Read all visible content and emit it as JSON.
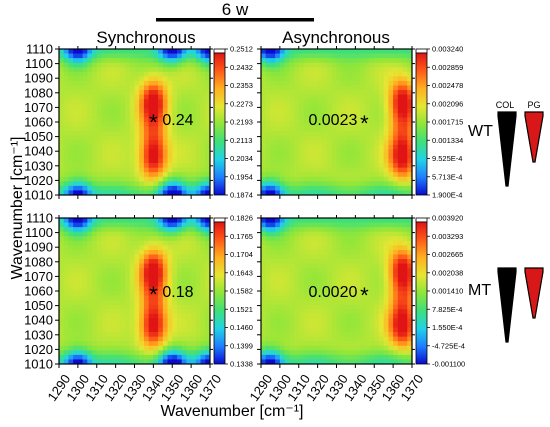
{
  "figure": {
    "top_label": "6 w",
    "col_titles": [
      "Synchronous",
      "Asynchronous"
    ],
    "ylabel": "Wavenumber [cm⁻¹]",
    "xlabel": "Wavenumber [cm⁻¹]"
  },
  "chart_data": [
    {
      "type": "heatmap",
      "panel": "WT synchronous",
      "row_label": "WT",
      "x_ticks": [
        "1290",
        "1300",
        "1310",
        "1320",
        "1330",
        "1340",
        "1350",
        "1360",
        "1370"
      ],
      "y_ticks": [
        "1110",
        "1100",
        "1090",
        "1080",
        "1070",
        "1060",
        "1050",
        "1040",
        "1030",
        "1020",
        "1010"
      ],
      "xlim": [
        1290,
        1370
      ],
      "ylim": [
        1010,
        1110
      ],
      "colorbar_ticks": [
        "0.2512",
        "0.2432",
        "0.2353",
        "0.2273",
        "0.2193",
        "0.2113",
        "0.2034",
        "0.1954",
        "0.1874"
      ],
      "annotation": {
        "text": "0.24",
        "x": 1340,
        "y": 1062
      },
      "hot_columns": [
        1340
      ],
      "cold_columns": [
        1300,
        1350,
        1370
      ],
      "cold_rows": [
        1010,
        1110
      ]
    },
    {
      "type": "heatmap",
      "panel": "WT asynchronous",
      "row_label": "WT",
      "x_ticks": [
        "1290",
        "1300",
        "1310",
        "1320",
        "1330",
        "1340",
        "1350",
        "1360",
        "1370"
      ],
      "y_ticks": [
        "1110",
        "1100",
        "1090",
        "1080",
        "1070",
        "1060",
        "1050",
        "1040",
        "1030",
        "1020",
        "1010"
      ],
      "xlim": [
        1290,
        1370
      ],
      "ylim": [
        1010,
        1110
      ],
      "colorbar_ticks": [
        "0.003240",
        "0.002859",
        "0.002478",
        "0.002096",
        "0.001715",
        "0.001334",
        "9.525E-4",
        "5.713E-4",
        "1.900E-4"
      ],
      "annotation": {
        "text": "0.0023",
        "x": 1340,
        "y": 1062
      },
      "hot_columns": [
        1365
      ],
      "cold_columns": [
        1295
      ],
      "cold_rows": [
        1010,
        1110
      ]
    },
    {
      "type": "heatmap",
      "panel": "MT synchronous",
      "row_label": "MT",
      "x_ticks": [
        "1290",
        "1300",
        "1310",
        "1320",
        "1330",
        "1340",
        "1350",
        "1360",
        "1370"
      ],
      "y_ticks": [
        "1110",
        "1100",
        "1090",
        "1080",
        "1070",
        "1060",
        "1050",
        "1040",
        "1030",
        "1020",
        "1010"
      ],
      "xlim": [
        1290,
        1370
      ],
      "ylim": [
        1010,
        1110
      ],
      "colorbar_ticks": [
        "0.1826",
        "0.1765",
        "0.1704",
        "0.1643",
        "0.1582",
        "0.1521",
        "0.1460",
        "0.1399",
        "0.1338"
      ],
      "annotation": {
        "text": "0.18",
        "x": 1340,
        "y": 1060
      },
      "hot_columns": [
        1340
      ],
      "cold_columns": [
        1300,
        1350,
        1370
      ],
      "cold_rows": [
        1010,
        1110
      ]
    },
    {
      "type": "heatmap",
      "panel": "MT asynchronous",
      "row_label": "MT",
      "x_ticks": [
        "1290",
        "1300",
        "1310",
        "1320",
        "1330",
        "1340",
        "1350",
        "1360",
        "1370"
      ],
      "y_ticks": [
        "1110",
        "1100",
        "1090",
        "1080",
        "1070",
        "1060",
        "1050",
        "1040",
        "1030",
        "1020",
        "1010"
      ],
      "xlim": [
        1290,
        1370
      ],
      "ylim": [
        1010,
        1110
      ],
      "colorbar_ticks": [
        "0.003920",
        "0.003293",
        "0.002665",
        "0.002038",
        "0.001410",
        "7.825E-4",
        "1.550E-4",
        "-4.725E-4",
        "-0.001100"
      ],
      "annotation": {
        "text": "0.0020",
        "x": 1340,
        "y": 1060
      },
      "hot_columns": [
        1365
      ],
      "cold_columns": [
        1295
      ],
      "cold_rows": [
        1010,
        1110
      ]
    }
  ],
  "legend": {
    "labels": [
      "COL",
      "PG"
    ],
    "colors": [
      "#000000",
      "#d81818"
    ]
  },
  "colormap": [
    "#0a0ad0",
    "#1e7fff",
    "#22d3e6",
    "#3ee07a",
    "#8ee63a",
    "#e6e632",
    "#ffb020",
    "#ff5a18",
    "#e01414"
  ]
}
